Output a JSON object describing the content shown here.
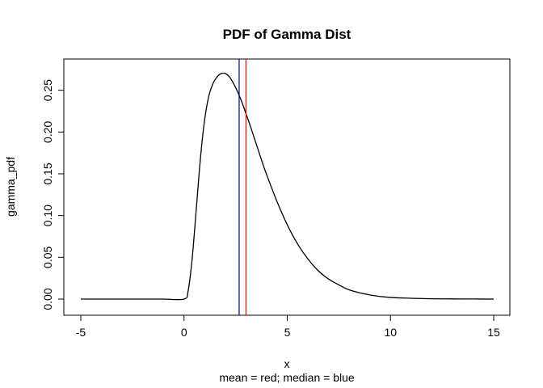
{
  "chart_data": {
    "type": "line",
    "title": "PDF of Gamma Dist",
    "xlabel": "x",
    "ylabel": "gamma_pdf",
    "subtitle": "mean = red; median = blue",
    "xlim": [
      -5,
      15
    ],
    "ylim": [
      0,
      0.27
    ],
    "x_ticks": [
      -5,
      0,
      5,
      10,
      15
    ],
    "x_tick_labels": [
      "-5",
      "0",
      "5",
      "10",
      "15"
    ],
    "y_ticks": [
      0.0,
      0.05,
      0.1,
      0.15,
      0.2,
      0.25
    ],
    "y_tick_labels": [
      "0.00",
      "0.05",
      "0.10",
      "0.15",
      "0.20",
      "0.25"
    ],
    "grid": false,
    "series": [
      {
        "color": "#000000",
        "x": [
          -5,
          -4,
          -3,
          -2,
          -1,
          0,
          0.2,
          0.4,
          0.6,
          0.8,
          1.0,
          1.2,
          1.4,
          1.6,
          1.8,
          2.0,
          2.2,
          2.4,
          2.6,
          2.8,
          3.0,
          3.2,
          3.4,
          3.6,
          3.8,
          4.0,
          4.5,
          5.0,
          5.5,
          6.0,
          6.5,
          7.0,
          7.5,
          8.0,
          9.0,
          10.0,
          11.0,
          12.0,
          13.0,
          14.0,
          15.0
        ],
        "y": [
          0,
          0,
          0,
          0,
          0,
          0,
          0.01,
          0.05,
          0.11,
          0.17,
          0.215,
          0.243,
          0.258,
          0.266,
          0.27,
          0.27,
          0.266,
          0.258,
          0.248,
          0.236,
          0.222,
          0.208,
          0.193,
          0.178,
          0.163,
          0.149,
          0.117,
          0.089,
          0.066,
          0.048,
          0.034,
          0.024,
          0.017,
          0.011,
          0.005,
          0.002,
          0.001,
          0.0004,
          0.0002,
          0.0001,
          0
        ]
      }
    ],
    "vlines": [
      {
        "label": "mean",
        "x": 3.0,
        "color": "#ff0000"
      },
      {
        "label": "median",
        "x": 2.67,
        "color": "#00008b"
      }
    ]
  }
}
